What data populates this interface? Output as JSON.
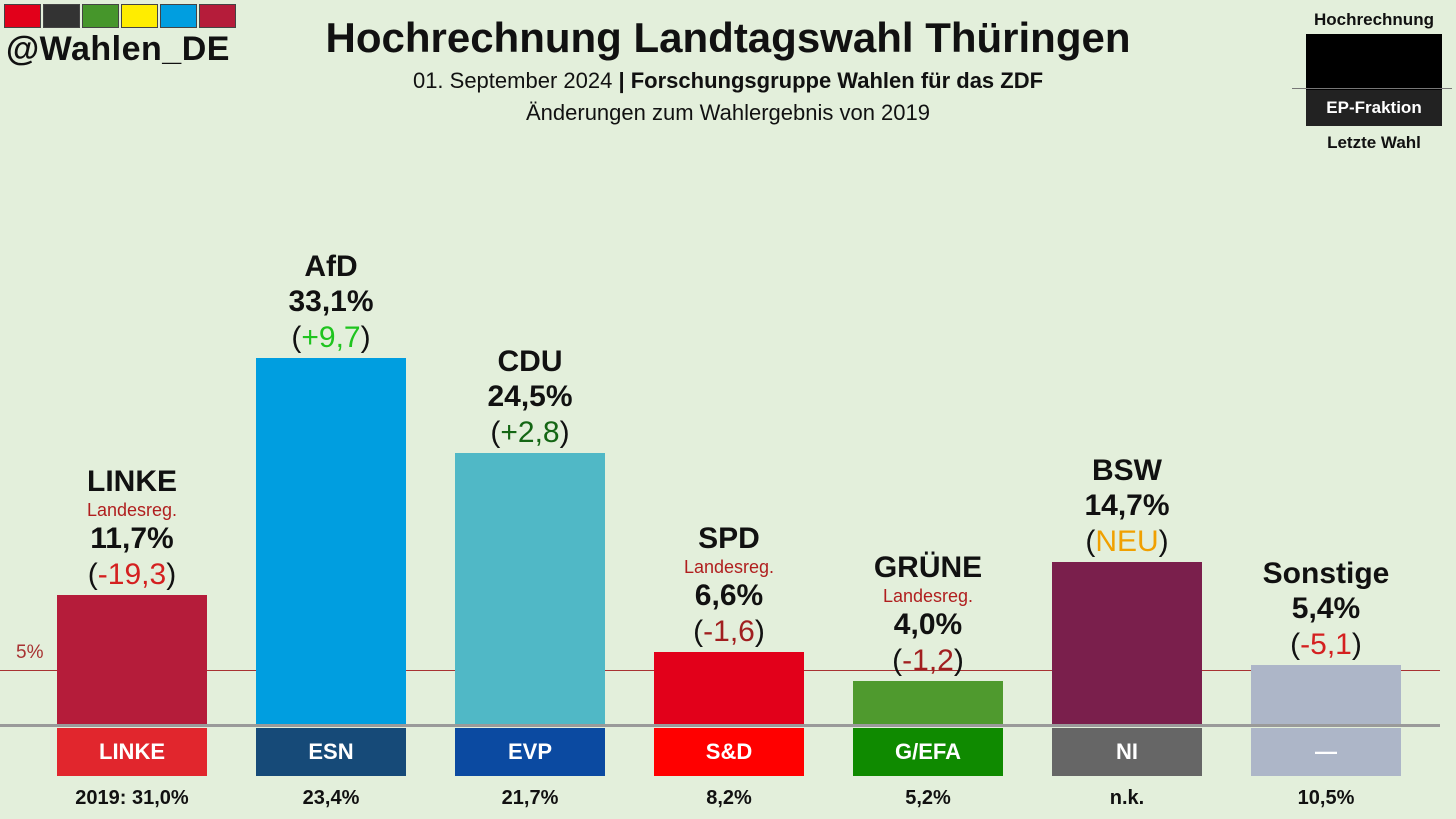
{
  "header": {
    "flag_colors": [
      "#e2001a",
      "#333333",
      "#46962b",
      "#ffed00",
      "#009ee0",
      "#b51c3a"
    ],
    "brand": "@Wahlen_DE",
    "title": "Hochrechnung Landtagswahl Thüringen",
    "date": "01. September 2024",
    "separator": "|",
    "source": "Forschungsgruppe Wahlen für das ZDF",
    "subtitle": "Änderungen zum Wahlergebnis von 2019"
  },
  "legend": {
    "top": "Hochrechnung",
    "middle": "EP-Fraktion",
    "bottom": "Letzte Wahl"
  },
  "chart_data": {
    "type": "bar",
    "title": "Hochrechnung Landtagswahl Thüringen",
    "ylim": [
      0,
      40
    ],
    "threshold": {
      "value": 5,
      "label": "5%"
    },
    "categories": [
      "LINKE",
      "AfD",
      "CDU",
      "SPD",
      "GRÜNE",
      "BSW",
      "Sonstige"
    ],
    "values": [
      11.7,
      33.1,
      24.5,
      6.6,
      4.0,
      14.7,
      5.4
    ],
    "parties": [
      {
        "name": "LINKE",
        "value": 11.7,
        "pct_label": "11,7%",
        "note": "Landesreg.",
        "change": "-19,3",
        "change_color": "#d42020",
        "color": "#b51c3a",
        "group": "LINKE",
        "group_color": "#e1262d",
        "previous": "2019: 31,0%"
      },
      {
        "name": "AfD",
        "value": 33.1,
        "pct_label": "33,1%",
        "note": "",
        "change": "+9,7",
        "change_color": "#1fc41f",
        "color": "#009ee0",
        "group": "ESN",
        "group_color": "#164a78",
        "previous": "23,4%"
      },
      {
        "name": "CDU",
        "value": 24.5,
        "pct_label": "24,5%",
        "note": "",
        "change": "+2,8",
        "change_color": "#146614",
        "color": "#50b8c6",
        "group": "EVP",
        "group_color": "#0b4aa1",
        "previous": "21,7%"
      },
      {
        "name": "SPD",
        "value": 6.6,
        "pct_label": "6,6%",
        "note": "Landesreg.",
        "change": "-1,6",
        "change_color": "#a11f1f",
        "color": "#e2001a",
        "group": "S&D",
        "group_color": "#ff0000",
        "previous": "8,2%"
      },
      {
        "name": "GRÜNE",
        "value": 4.0,
        "pct_label": "4,0%",
        "note": "Landesreg.",
        "change": "-1,2",
        "change_color": "#a11f1f",
        "color": "#4f9a2e",
        "group": "G/EFA",
        "group_color": "#0f8a00",
        "previous": "5,2%"
      },
      {
        "name": "BSW",
        "value": 14.7,
        "pct_label": "14,7%",
        "note": "",
        "change": "NEU",
        "change_color": "#f0a000",
        "color": "#7a1f4c",
        "group": "NI",
        "group_color": "#666666",
        "previous": "n.k."
      },
      {
        "name": "Sonstige",
        "value": 5.4,
        "pct_label": "5,4%",
        "note": "",
        "change": "-5,1",
        "change_color": "#d42020",
        "color": "#adb6c8",
        "group": "—",
        "group_color": "#adb6c8",
        "previous": "10,5%"
      }
    ]
  }
}
